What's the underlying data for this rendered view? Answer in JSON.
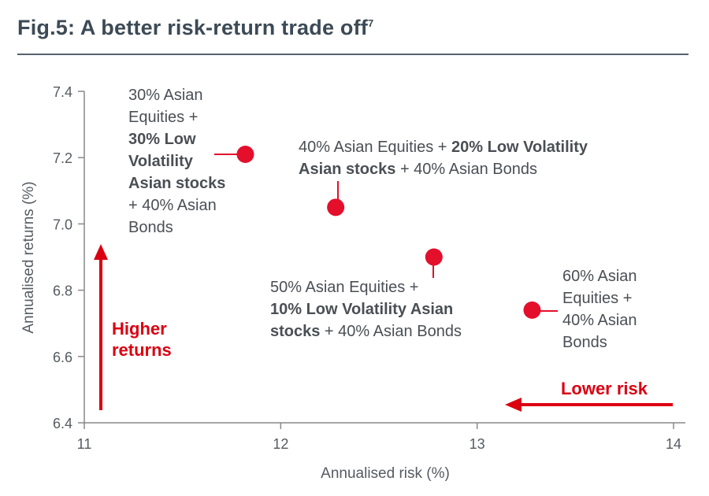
{
  "figure": {
    "title": "Fig.5: A better risk-return trade off",
    "title_sup": "7"
  },
  "chart_data": {
    "type": "scatter",
    "xlabel": "Annualised risk (%)",
    "ylabel": "Annualised returns (%)",
    "xlim": [
      11,
      14
    ],
    "ylim": [
      6.4,
      7.4
    ],
    "x_ticks": [
      "11",
      "12",
      "13",
      "14"
    ],
    "y_ticks": [
      "6.4",
      "6.6",
      "6.8",
      "7.0",
      "7.2",
      "7.4"
    ],
    "point_color": "#e30f2b",
    "points": [
      {
        "x": 11.82,
        "y": 7.21,
        "label": "30% Asian Equities + 30% Low Volatility Asian stocks + 40% Asian Bonds"
      },
      {
        "x": 12.28,
        "y": 7.05,
        "label": "40% Asian Equities + 20% Low Volatility Asian stocks + 40% Asian Bonds"
      },
      {
        "x": 12.78,
        "y": 6.9,
        "label": "50% Asian Equities + 10% Low Volatility Asian stocks + 40% Asian Bonds"
      },
      {
        "x": 13.28,
        "y": 6.74,
        "label": "60% Asian Equities + 40% Asian Bonds"
      }
    ],
    "annotations": {
      "higher_returns": [
        "Higher",
        "returns"
      ],
      "lower_risk": "Lower risk"
    }
  },
  "labels": {
    "p1": [
      "30% Asian",
      "Equities +",
      "30% Low",
      "Volatility",
      "Asian stocks",
      "+ 40% Asian",
      "Bonds"
    ],
    "p2": [
      "40% Asian Equities + ",
      "20% Low Volatility",
      "Asian stocks",
      " + 40% Asian Bonds"
    ],
    "p3": [
      "50% Asian Equities +",
      "10% Low Volatility Asian",
      "stocks",
      " + 40% Asian Bonds"
    ],
    "p4": [
      "60% Asian",
      "Equities +",
      "40% Asian",
      "Bonds"
    ]
  },
  "accent_color": "#db0011"
}
